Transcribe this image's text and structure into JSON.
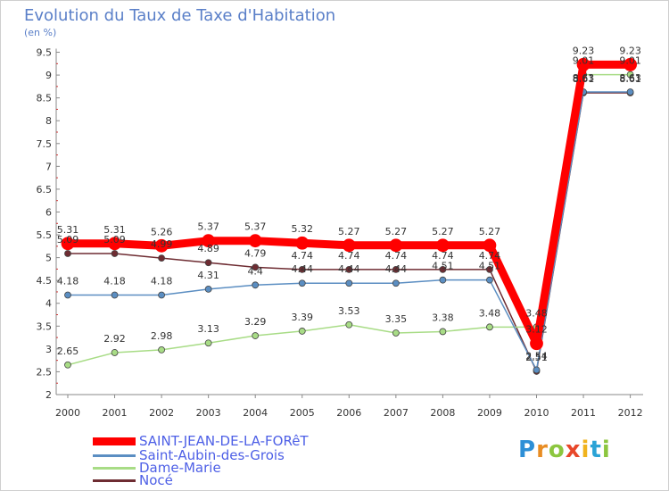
{
  "title": "Evolution du Taux de Taxe d'Habitation",
  "unit": "(en %)",
  "brand": "Proxiti",
  "chart_data": {
    "type": "line",
    "title": "Evolution du Taux de Taxe d'Habitation",
    "ylabel": "(en %)",
    "xlabel": "",
    "ylim": [
      2,
      9.5
    ],
    "yticks": [
      "2",
      "2.5",
      "3",
      "3.5",
      "4",
      "4.5",
      "5",
      "5.5",
      "6",
      "6.5",
      "7",
      "7.5",
      "8",
      "8.5",
      "9",
      "9.5"
    ],
    "categories": [
      "2000",
      "2001",
      "2002",
      "2003",
      "2004",
      "2005",
      "2006",
      "2007",
      "2008",
      "2009",
      "2010",
      "2011",
      "2012"
    ],
    "grid": false,
    "legend": "bottom-left",
    "series": [
      {
        "name": "SAINT-JEAN-DE-LA-FORêT",
        "color": "#ff0000",
        "values": [
          5.31,
          5.31,
          5.26,
          5.37,
          5.37,
          5.32,
          5.27,
          5.27,
          5.27,
          5.27,
          3.12,
          9.23,
          9.23
        ],
        "labels": [
          "5.31",
          "5.31",
          "5.26",
          "5.37",
          "5.37",
          "5.32",
          "5.27",
          "5.27",
          "5.27",
          "5.27",
          "3.12",
          "9.23",
          "9.23"
        ]
      },
      {
        "name": "Saint-Aubin-des-Grois",
        "color": "#5b8ec2",
        "values": [
          4.18,
          4.18,
          4.18,
          4.31,
          4.4,
          4.44,
          4.44,
          4.44,
          4.51,
          4.51,
          2.54,
          8.63,
          8.63
        ],
        "labels": [
          "4.18",
          "4.18",
          "4.18",
          "4.31",
          "4.4",
          "4.44",
          "4.44",
          "4.44",
          "4.51",
          "4.51",
          "2.54",
          "8.63",
          "8.63"
        ]
      },
      {
        "name": "Dame-Marie",
        "color": "#a8dc86",
        "values": [
          2.65,
          2.92,
          2.98,
          3.13,
          3.29,
          3.39,
          3.53,
          3.35,
          3.38,
          3.48,
          3.48,
          9.01,
          9.01
        ],
        "labels": [
          "2.65",
          "2.92",
          "2.98",
          "3.13",
          "3.29",
          "3.39",
          "3.53",
          "3.35",
          "3.38",
          "3.48",
          "3.48",
          "9.01",
          "9.01"
        ]
      },
      {
        "name": "Nocé",
        "color": "#6e2c32",
        "values": [
          5.09,
          5.09,
          4.99,
          4.89,
          4.79,
          4.74,
          4.74,
          4.74,
          4.74,
          4.74,
          2.51,
          8.61,
          8.61
        ],
        "labels": [
          "5.09",
          "5.09",
          "4.99",
          "4.89",
          "4.79",
          "4.74",
          "4.74",
          "4.74",
          "4.74",
          "4.74",
          "2.51",
          "8.61",
          "8.61"
        ]
      }
    ]
  }
}
